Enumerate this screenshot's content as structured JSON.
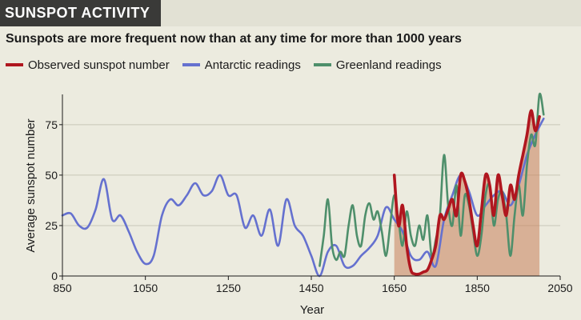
{
  "header": {
    "tag": "SUNSPOT ACTIVITY"
  },
  "chart_data": {
    "type": "line",
    "title": "Sunspots are more frequent now than at any time for more than 1000 years",
    "xlabel": "Year",
    "ylabel": "Average sunspot number",
    "xlim": [
      850,
      2050
    ],
    "ylim": [
      0,
      90
    ],
    "x_ticks": [
      850,
      1050,
      1250,
      1450,
      1650,
      1850,
      2050
    ],
    "y_ticks": [
      0,
      25,
      50,
      75
    ],
    "grid": "horizontal",
    "legend": "top-left",
    "colors": {
      "observed": "#b0161f",
      "antarctic": "#6571cf",
      "greenland": "#4e8f6b",
      "fill": "#c97f5a"
    },
    "series": [
      {
        "name": "Observed sunspot number",
        "x": [
          1650,
          1660,
          1670,
          1680,
          1690,
          1700,
          1710,
          1720,
          1730,
          1740,
          1750,
          1760,
          1770,
          1780,
          1790,
          1800,
          1810,
          1820,
          1830,
          1840,
          1850,
          1860,
          1870,
          1880,
          1890,
          1900,
          1910,
          1920,
          1930,
          1940,
          1950,
          1960,
          1970,
          1980,
          1990,
          2000
        ],
        "values": [
          50,
          25,
          35,
          15,
          3,
          1,
          1,
          2,
          3,
          8,
          15,
          30,
          28,
          33,
          38,
          30,
          50,
          47,
          38,
          25,
          15,
          32,
          50,
          45,
          30,
          50,
          40,
          30,
          45,
          38,
          50,
          60,
          70,
          82,
          72,
          79
        ]
      },
      {
        "name": "Antarctic readings",
        "x": [
          850,
          870,
          890,
          910,
          930,
          950,
          970,
          990,
          1010,
          1030,
          1050,
          1070,
          1090,
          1110,
          1130,
          1150,
          1170,
          1190,
          1210,
          1230,
          1250,
          1270,
          1290,
          1310,
          1330,
          1350,
          1370,
          1390,
          1410,
          1430,
          1450,
          1470,
          1490,
          1510,
          1530,
          1550,
          1570,
          1590,
          1610,
          1630,
          1650,
          1670,
          1690,
          1710,
          1730,
          1750,
          1770,
          1790,
          1810,
          1830,
          1850,
          1870,
          1890,
          1910,
          1930,
          1950,
          1970,
          1990,
          2010
        ],
        "values": [
          30,
          31,
          25,
          24,
          33,
          48,
          28,
          30,
          22,
          12,
          6,
          10,
          30,
          38,
          35,
          40,
          46,
          40,
          42,
          50,
          40,
          40,
          24,
          30,
          20,
          33,
          15,
          38,
          25,
          20,
          10,
          0,
          12,
          15,
          5,
          5,
          10,
          14,
          20,
          34,
          28,
          22,
          10,
          8,
          12,
          5,
          28,
          40,
          50,
          42,
          30,
          35,
          40,
          42,
          35,
          45,
          60,
          70,
          78
        ]
      },
      {
        "name": "Greenland readings",
        "x": [
          1470,
          1480,
          1490,
          1500,
          1510,
          1520,
          1530,
          1540,
          1550,
          1560,
          1570,
          1580,
          1590,
          1600,
          1610,
          1620,
          1630,
          1640,
          1650,
          1660,
          1670,
          1680,
          1690,
          1700,
          1710,
          1720,
          1730,
          1740,
          1750,
          1760,
          1770,
          1780,
          1790,
          1800,
          1810,
          1820,
          1830,
          1840,
          1850,
          1860,
          1870,
          1880,
          1890,
          1900,
          1910,
          1920,
          1930,
          1940,
          1950,
          1960,
          1970,
          1980,
          1990,
          2000,
          2010
        ],
        "values": [
          5,
          20,
          38,
          15,
          8,
          12,
          10,
          25,
          35,
          20,
          15,
          30,
          36,
          28,
          32,
          22,
          10,
          25,
          40,
          28,
          15,
          32,
          20,
          15,
          25,
          18,
          30,
          10,
          18,
          30,
          60,
          35,
          25,
          45,
          20,
          40,
          35,
          22,
          10,
          20,
          40,
          45,
          25,
          38,
          42,
          30,
          10,
          30,
          45,
          30,
          55,
          70,
          65,
          90,
          80
        ]
      }
    ]
  }
}
